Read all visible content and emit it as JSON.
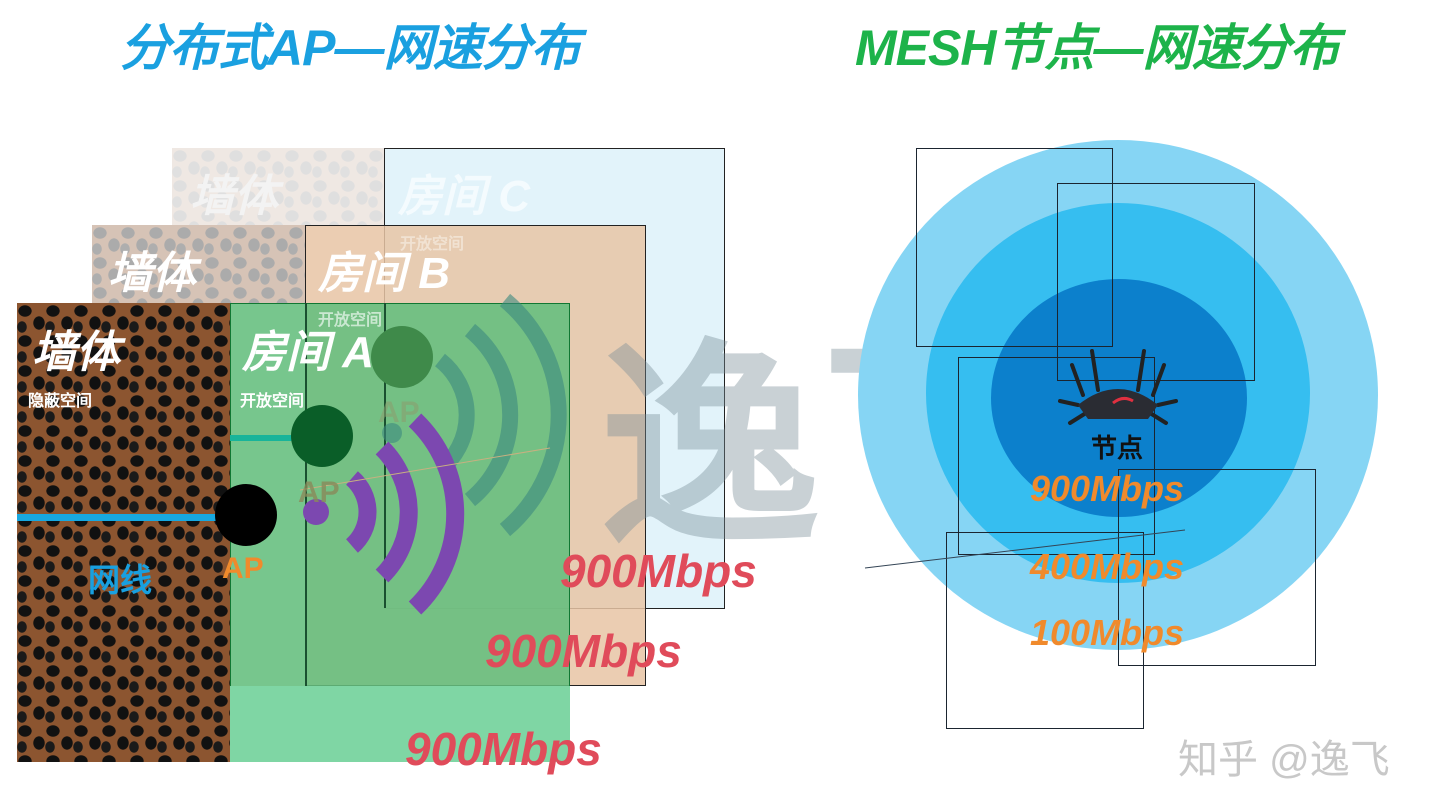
{
  "left": {
    "title": "分布式AP—网速分布",
    "title_color": "#1aa0e0",
    "walls": [
      {
        "label": "墙体",
        "sub": "隐蔽空间"
      },
      {
        "label": "墙体"
      },
      {
        "label": "墙体"
      }
    ],
    "rooms": [
      {
        "label": "房间 A",
        "sub": "开放空间",
        "speed": "900Mbps",
        "color": "#6fc28a"
      },
      {
        "label": "房间 B",
        "sub": "开放空间",
        "speed": "900Mbps",
        "color": "#eac7aa"
      },
      {
        "label": "房间 C",
        "sub": "开放空间",
        "speed": "900Mbps",
        "color": "#e2f3fa"
      }
    ],
    "cable_label": "网线",
    "ap_labels": [
      "AP",
      "AP",
      "AP"
    ],
    "speed_color": "#e04b5a"
  },
  "right": {
    "title": "MESH节点—网速分布",
    "title_color": "#1db34a",
    "node_label": "节点",
    "speeds": [
      "900Mbps",
      "400Mbps",
      "100Mbps"
    ],
    "ring_colors": [
      "#86d5f4",
      "#36bef0",
      "#0c80cc"
    ],
    "speed_color": "#f08a2c"
  },
  "watermark": {
    "center": "逸飞",
    "corner": "知乎 @逸飞"
  }
}
